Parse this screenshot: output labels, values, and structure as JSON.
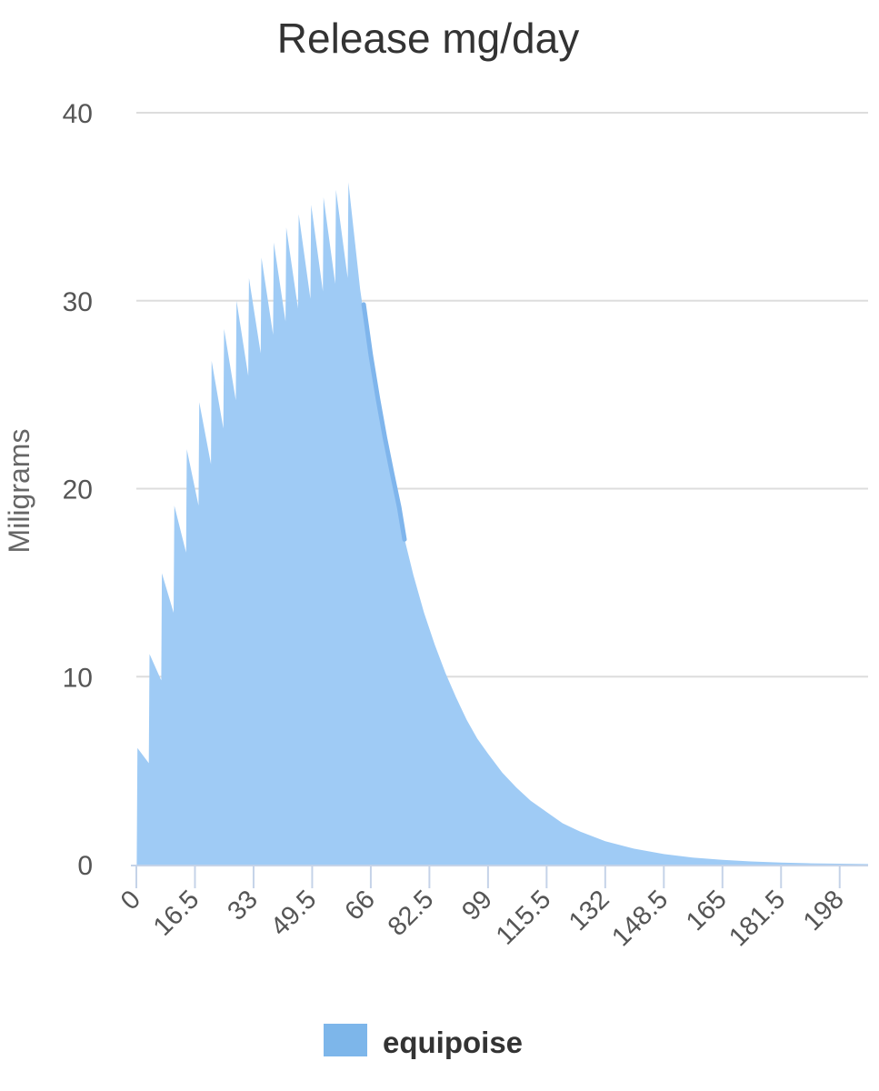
{
  "chart_data": {
    "type": "area",
    "title": "Release mg/day",
    "xlabel": "",
    "ylabel": "Miligrams",
    "xlim": [
      0,
      206
    ],
    "ylim": [
      0,
      40
    ],
    "y_ticks": [
      "0",
      "10",
      "20",
      "30",
      "40"
    ],
    "x_tick_values": [
      0,
      16.5,
      33,
      49.5,
      66,
      82.5,
      99,
      115.5,
      132,
      148.5,
      165,
      181.5,
      198
    ],
    "x_ticks": [
      "0",
      "16.5",
      "33",
      "49.5",
      "66",
      "82.5",
      "99",
      "115.5",
      "132",
      "148.5",
      "165",
      "181.5",
      "198"
    ],
    "grid": true,
    "legend_position": "bottom",
    "colors": {
      "area": "#9fcbf5",
      "legend": "#7db6ea",
      "overlap": "#7fb5ec",
      "grid": "#dddddd",
      "axis": "#c5d3e8"
    },
    "series": [
      {
        "name": "equipoise",
        "points": [
          [
            0.1,
            0
          ],
          [
            0.3,
            6.2
          ],
          [
            3.5,
            5.4
          ],
          [
            3.7,
            11.2
          ],
          [
            7.0,
            9.8
          ],
          [
            7.2,
            15.5
          ],
          [
            10.5,
            13.4
          ],
          [
            10.7,
            19.1
          ],
          [
            14.0,
            16.6
          ],
          [
            14.2,
            22.1
          ],
          [
            17.5,
            19.1
          ],
          [
            17.7,
            24.6
          ],
          [
            21.0,
            21.3
          ],
          [
            21.2,
            26.8
          ],
          [
            24.5,
            23.2
          ],
          [
            24.7,
            28.5
          ],
          [
            28.0,
            24.7
          ],
          [
            28.2,
            30.0
          ],
          [
            31.5,
            26.0
          ],
          [
            31.7,
            31.2
          ],
          [
            35.0,
            27.2
          ],
          [
            35.2,
            32.3
          ],
          [
            38.5,
            28.2
          ],
          [
            38.7,
            33.1
          ],
          [
            42.0,
            28.9
          ],
          [
            42.2,
            33.9
          ],
          [
            45.5,
            29.6
          ],
          [
            45.7,
            34.6
          ],
          [
            49.0,
            30.1
          ],
          [
            49.2,
            35.1
          ],
          [
            52.5,
            30.5
          ],
          [
            52.7,
            35.5
          ],
          [
            56.0,
            30.9
          ],
          [
            56.2,
            35.9
          ],
          [
            59.5,
            31.2
          ],
          [
            59.7,
            36.3
          ],
          [
            63,
            30.6
          ],
          [
            66,
            26.7
          ],
          [
            69,
            23.2
          ],
          [
            72,
            20.3
          ],
          [
            75,
            17.7
          ],
          [
            78,
            15.4
          ],
          [
            81,
            13.4
          ],
          [
            84,
            11.7
          ],
          [
            87,
            10.2
          ],
          [
            90,
            8.9
          ],
          [
            93,
            7.7
          ],
          [
            96,
            6.7
          ],
          [
            99,
            5.9
          ],
          [
            103,
            4.9
          ],
          [
            107,
            4.1
          ],
          [
            111,
            3.4
          ],
          [
            115.5,
            2.8
          ],
          [
            120,
            2.2
          ],
          [
            125,
            1.75
          ],
          [
            132,
            1.25
          ],
          [
            140,
            0.85
          ],
          [
            148.5,
            0.56
          ],
          [
            157,
            0.37
          ],
          [
            165,
            0.25
          ],
          [
            173,
            0.17
          ],
          [
            181.5,
            0.11
          ],
          [
            190,
            0.07
          ],
          [
            198,
            0.05
          ],
          [
            206,
            0.03
          ],
          [
            206,
            0
          ]
        ],
        "overlap_segment": [
          [
            64.0,
            29.8
          ],
          [
            66,
            27.1
          ],
          [
            68,
            24.8
          ],
          [
            70,
            22.7
          ],
          [
            72,
            20.8
          ],
          [
            74,
            19.0
          ],
          [
            75.5,
            17.3
          ]
        ]
      }
    ]
  }
}
